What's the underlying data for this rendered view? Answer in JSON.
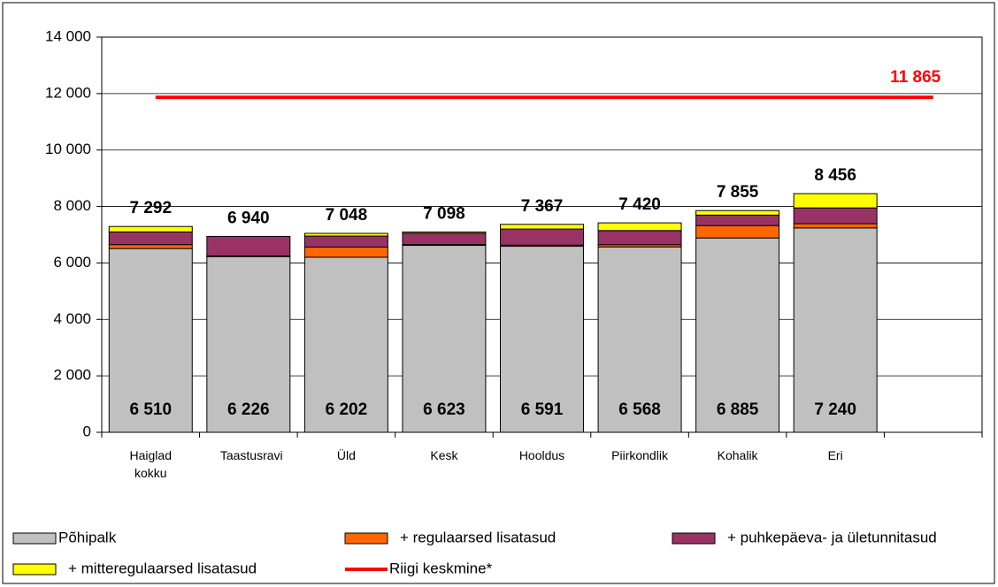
{
  "chart_data": {
    "type": "stacked_bar",
    "categories": [
      "Haiglad kokku",
      "Taastusravi",
      "Üld",
      "Kesk",
      "Hooldus",
      "Piirkondlik",
      "Kohalik",
      "Eri",
      null
    ],
    "series": [
      {
        "name": "Põhipalk",
        "color": "#c0c0c0",
        "values": [
          6510,
          6226,
          6202,
          6623,
          6591,
          6568,
          6885,
          7240,
          null
        ],
        "value_labels": [
          "6 510",
          "6 226",
          "6 202",
          "6 623",
          "6 591",
          "6 568",
          "6 885",
          "7 240",
          null
        ]
      },
      {
        "name": "+ regulaarsed lisatasud",
        "color": "#ff6600",
        "values": [
          140,
          20,
          360,
          30,
          40,
          80,
          440,
          150,
          null
        ]
      },
      {
        "name": "+ puhkepäeva- ja ületunnitasud",
        "color": "#993366",
        "values": [
          450,
          694,
          390,
          400,
          570,
          500,
          370,
          560,
          null
        ]
      },
      {
        "name": "+ mitteregulaarsed lisatasud",
        "color": "#ffff00",
        "values": [
          192,
          0,
          96,
          45,
          166,
          272,
          160,
          506,
          null
        ]
      }
    ],
    "totals": {
      "values": [
        7292,
        6940,
        7048,
        7098,
        7367,
        7420,
        7855,
        8456,
        null
      ],
      "value_labels": [
        "7 292",
        "6 940",
        "7 048",
        "7 098",
        "7 367",
        "7 420",
        "7 855",
        "8 456",
        null
      ]
    },
    "reference": {
      "name": "Riigi keskmine*",
      "value": 11865,
      "value_label": "11 865",
      "color": "#ff0000"
    },
    "ylim": [
      0,
      14000
    ],
    "yticks": [
      0,
      {
        "value": 2000,
        "label": "2 000"
      },
      {
        "value": 4000,
        "label": "4 000"
      },
      {
        "value": 6000,
        "label": "6 000"
      },
      {
        "value": 8000,
        "label": "8 000"
      },
      {
        "value": 10000,
        "label": "10 000"
      },
      {
        "value": 12000,
        "label": "12 000"
      },
      {
        "value": 14000,
        "label": "14 000"
      }
    ],
    "grid": true
  }
}
